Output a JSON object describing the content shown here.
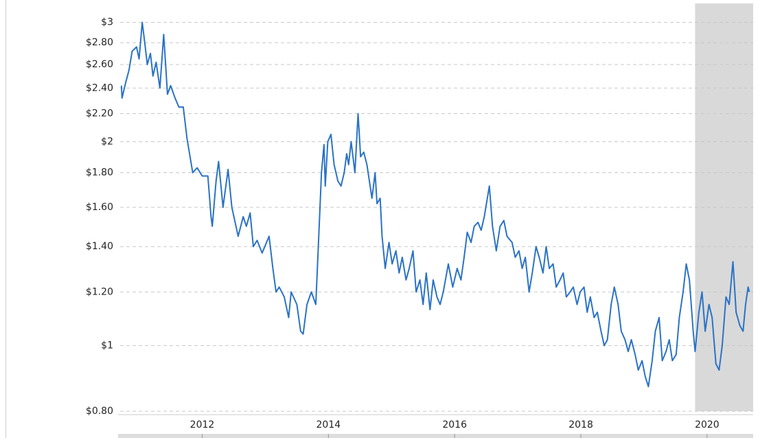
{
  "chart_data": {
    "type": "line",
    "log_y": true,
    "grid": true,
    "color": "#2a72c6",
    "shaded_x": [
      2019.81,
      2020.73
    ],
    "xlim": [
      2010.7,
      2020.73
    ],
    "ylim": [
      0.8,
      3.2
    ],
    "xticks": [
      2012,
      2014,
      2016,
      2018,
      2020
    ],
    "yticks": [
      {
        "value": 0.8,
        "label": "$0.80"
      },
      {
        "value": 1,
        "label": "$1"
      },
      {
        "value": 1.2,
        "label": "$1.20"
      },
      {
        "value": 1.4,
        "label": "$1.40"
      },
      {
        "value": 1.6,
        "label": "$1.60"
      },
      {
        "value": 1.8,
        "label": "$1.80"
      },
      {
        "value": 2,
        "label": "$2"
      },
      {
        "value": 2.2,
        "label": "$2.20"
      },
      {
        "value": 2.4,
        "label": "$2.40"
      },
      {
        "value": 2.6,
        "label": "$2.60"
      },
      {
        "value": 2.8,
        "label": "$2.80"
      },
      {
        "value": 3,
        "label": "$3"
      }
    ],
    "x": [
      2010.72,
      2010.73,
      2010.79,
      2010.84,
      2010.89,
      2010.96,
      2011.0,
      2011.05,
      2011.09,
      2011.13,
      2011.18,
      2011.22,
      2011.27,
      2011.33,
      2011.39,
      2011.45,
      2011.5,
      2011.57,
      2011.63,
      2011.7,
      2011.76,
      2011.85,
      2011.92,
      2012.0,
      2012.09,
      2012.14,
      2012.16,
      2012.22,
      2012.26,
      2012.33,
      2012.41,
      2012.47,
      2012.57,
      2012.65,
      2012.7,
      2012.76,
      2012.81,
      2012.87,
      2012.95,
      2013.06,
      2013.12,
      2013.17,
      2013.22,
      2013.3,
      2013.37,
      2013.41,
      2013.5,
      2013.56,
      2013.6,
      2013.66,
      2013.73,
      2013.8,
      2013.84,
      2013.89,
      2013.93,
      2013.95,
      2013.99,
      2014.04,
      2014.09,
      2014.15,
      2014.2,
      2014.25,
      2014.29,
      2014.32,
      2014.36,
      2014.42,
      2014.47,
      2014.51,
      2014.56,
      2014.61,
      2014.69,
      2014.74,
      2014.77,
      2014.82,
      2014.85,
      2014.9,
      2014.96,
      2015.01,
      2015.07,
      2015.12,
      2015.17,
      2015.23,
      2015.28,
      2015.34,
      2015.39,
      2015.45,
      2015.5,
      2015.55,
      2015.61,
      2015.66,
      2015.72,
      2015.77,
      2015.82,
      2015.9,
      2015.97,
      2016.04,
      2016.1,
      2016.15,
      2016.2,
      2016.26,
      2016.31,
      2016.37,
      2016.42,
      2016.47,
      2016.55,
      2016.6,
      2016.66,
      2016.72,
      2016.78,
      2016.83,
      2016.91,
      2016.96,
      2017.02,
      2017.07,
      2017.12,
      2017.18,
      2017.23,
      2017.29,
      2017.34,
      2017.4,
      2017.45,
      2017.5,
      2017.56,
      2017.61,
      2017.67,
      2017.72,
      2017.77,
      2017.83,
      2017.88,
      2017.94,
      2017.99,
      2018.05,
      2018.1,
      2018.15,
      2018.21,
      2018.26,
      2018.32,
      2018.37,
      2018.42,
      2018.48,
      2018.53,
      2018.59,
      2018.64,
      2018.7,
      2018.75,
      2018.8,
      2018.86,
      2018.91,
      2018.97,
      2019.02,
      2019.07,
      2019.13,
      2019.18,
      2019.24,
      2019.29,
      2019.35,
      2019.4,
      2019.45,
      2019.51,
      2019.56,
      2019.62,
      2019.67,
      2019.72,
      2019.78,
      2019.81,
      2019.87,
      2019.92,
      2019.97,
      2020.03,
      2020.08,
      2020.14,
      2020.19,
      2020.24,
      2020.3,
      2020.35,
      2020.41,
      2020.46,
      2020.52,
      2020.57,
      2020.61,
      2020.65,
      2020.67
    ],
    "values": [
      2.42,
      2.32,
      2.45,
      2.55,
      2.72,
      2.76,
      2.65,
      3.0,
      2.8,
      2.6,
      2.7,
      2.5,
      2.62,
      2.4,
      2.88,
      2.35,
      2.42,
      2.32,
      2.25,
      2.25,
      2.02,
      1.8,
      1.83,
      1.78,
      1.78,
      1.55,
      1.5,
      1.75,
      1.87,
      1.6,
      1.82,
      1.6,
      1.45,
      1.55,
      1.5,
      1.57,
      1.4,
      1.43,
      1.37,
      1.45,
      1.3,
      1.2,
      1.22,
      1.18,
      1.1,
      1.2,
      1.15,
      1.05,
      1.04,
      1.15,
      1.2,
      1.15,
      1.4,
      1.8,
      1.98,
      1.72,
      2.0,
      2.05,
      1.85,
      1.75,
      1.72,
      1.8,
      1.92,
      1.85,
      2.0,
      1.8,
      2.2,
      1.9,
      1.93,
      1.85,
      1.65,
      1.8,
      1.62,
      1.65,
      1.45,
      1.3,
      1.42,
      1.32,
      1.38,
      1.28,
      1.35,
      1.25,
      1.3,
      1.38,
      1.2,
      1.25,
      1.15,
      1.28,
      1.13,
      1.25,
      1.18,
      1.15,
      1.2,
      1.32,
      1.22,
      1.3,
      1.25,
      1.35,
      1.47,
      1.42,
      1.5,
      1.52,
      1.48,
      1.55,
      1.72,
      1.5,
      1.38,
      1.5,
      1.53,
      1.45,
      1.42,
      1.35,
      1.38,
      1.3,
      1.35,
      1.2,
      1.28,
      1.4,
      1.35,
      1.28,
      1.4,
      1.3,
      1.32,
      1.22,
      1.25,
      1.28,
      1.18,
      1.2,
      1.22,
      1.15,
      1.2,
      1.22,
      1.12,
      1.18,
      1.1,
      1.12,
      1.05,
      1.0,
      1.02,
      1.15,
      1.22,
      1.15,
      1.05,
      1.02,
      0.98,
      1.02,
      0.97,
      0.92,
      0.95,
      0.9,
      0.87,
      0.95,
      1.05,
      1.1,
      0.95,
      0.98,
      1.02,
      0.95,
      0.97,
      1.1,
      1.2,
      1.32,
      1.25,
      1.05,
      0.98,
      1.12,
      1.2,
      1.05,
      1.15,
      1.1,
      0.94,
      0.92,
      1.0,
      1.18,
      1.15,
      1.33,
      1.12,
      1.07,
      1.05,
      1.15,
      1.22,
      1.2
    ]
  }
}
